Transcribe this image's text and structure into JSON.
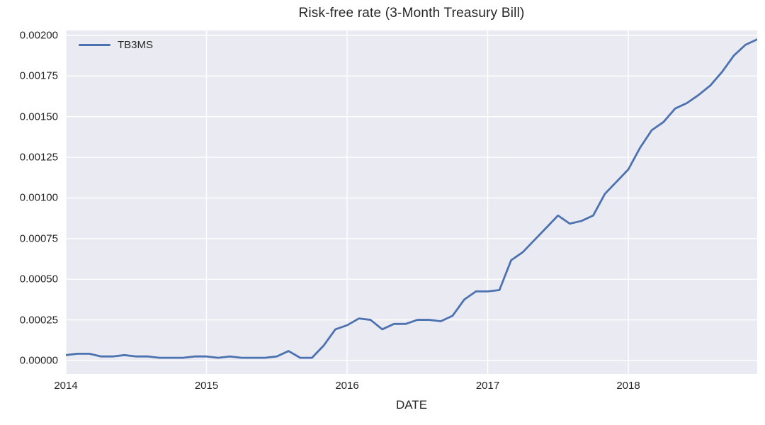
{
  "figure": {
    "title": "Risk-free rate (3-Month Treasury Bill)",
    "xlabel": "DATE",
    "legend": {
      "label": "TB3MS"
    }
  },
  "colors": {
    "line": "#4c72b0",
    "plot_background": "#eaeaf2",
    "grid": "#ffffff",
    "text": "#262626"
  },
  "chart_data": {
    "type": "line",
    "title": "Risk-free rate (3-Month Treasury Bill)",
    "xlabel": "DATE",
    "ylabel": "",
    "grid": true,
    "legend_position": "upper left",
    "x": [
      "2014-01",
      "2014-02",
      "2014-03",
      "2014-04",
      "2014-05",
      "2014-06",
      "2014-07",
      "2014-08",
      "2014-09",
      "2014-10",
      "2014-11",
      "2014-12",
      "2015-01",
      "2015-02",
      "2015-03",
      "2015-04",
      "2015-05",
      "2015-06",
      "2015-07",
      "2015-08",
      "2015-09",
      "2015-10",
      "2015-11",
      "2015-12",
      "2016-01",
      "2016-02",
      "2016-03",
      "2016-04",
      "2016-05",
      "2016-06",
      "2016-07",
      "2016-08",
      "2016-09",
      "2016-10",
      "2016-11",
      "2016-12",
      "2017-01",
      "2017-02",
      "2017-03",
      "2017-04",
      "2017-05",
      "2017-06",
      "2017-07",
      "2017-08",
      "2017-09",
      "2017-10",
      "2017-11",
      "2017-12",
      "2018-01",
      "2018-02",
      "2018-03",
      "2018-04",
      "2018-05",
      "2018-06",
      "2018-07",
      "2018-08",
      "2018-09",
      "2018-10",
      "2018-11",
      "2018-12"
    ],
    "series": [
      {
        "name": "TB3MS",
        "values": [
          3.33e-05,
          4.17e-05,
          4.17e-05,
          2.5e-05,
          2.5e-05,
          3.33e-05,
          2.5e-05,
          2.5e-05,
          1.67e-05,
          1.67e-05,
          1.67e-05,
          2.5e-05,
          2.5e-05,
          1.67e-05,
          2.5e-05,
          1.67e-05,
          1.67e-05,
          1.67e-05,
          2.5e-05,
          5.83e-05,
          1.67e-05,
          1.67e-05,
          9.17e-05,
          0.0001917,
          0.0002167,
          0.0002583,
          0.00025,
          0.0001917,
          0.000225,
          0.000225,
          0.00025,
          0.00025,
          0.0002417,
          0.000275,
          0.000375,
          0.000425,
          0.000425,
          0.0004333,
          0.0006167,
          0.0006667,
          0.0007417,
          0.0008167,
          0.0008917,
          0.0008417,
          0.0008583,
          0.0008917,
          0.001025,
          0.0011,
          0.001175,
          0.0013083,
          0.0014167,
          0.0014667,
          0.00155,
          0.0015833,
          0.0016333,
          0.0016917,
          0.001775,
          0.001875,
          0.0019417,
          0.001975
        ]
      }
    ],
    "x_ticks": {
      "positions": [
        0,
        12,
        24,
        36,
        48
      ],
      "labels": [
        "2014",
        "2015",
        "2016",
        "2017",
        "2018"
      ]
    },
    "y_ticks": {
      "values": [
        0.0,
        0.00025,
        0.0005,
        0.00075,
        0.001,
        0.00125,
        0.0015,
        0.00175,
        0.002
      ],
      "labels": [
        "0.00000",
        "0.00025",
        "0.00050",
        "0.00075",
        "0.00100",
        "0.00125",
        "0.00150",
        "0.00175",
        "0.00200"
      ]
    },
    "xlim_month_index": [
      0,
      59
    ],
    "ylim": [
      -8.3e-05,
      0.00203
    ]
  }
}
